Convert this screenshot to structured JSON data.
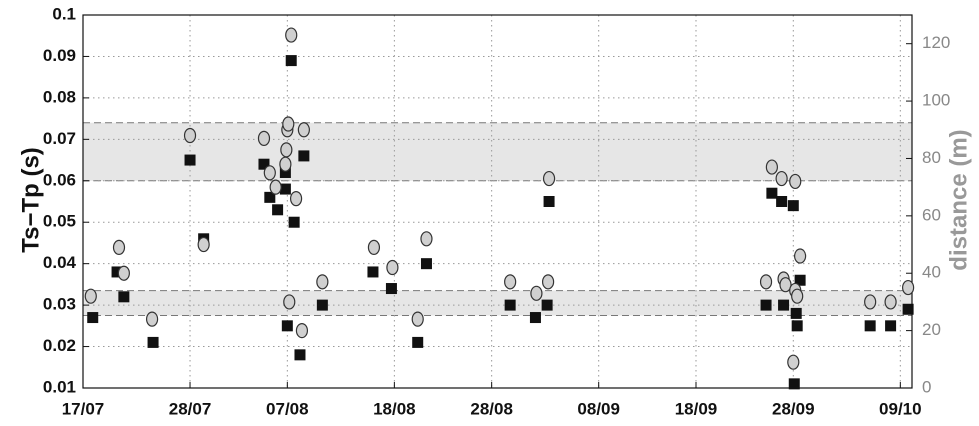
{
  "chart_data": {
    "type": "scatter",
    "y_label": "Ts−Tp (s)",
    "y2_label": "distance (m)",
    "xlim": [
      0,
      85.2
    ],
    "xticks": [
      {
        "value": 0,
        "label": "17/07"
      },
      {
        "value": 11,
        "label": "28/07"
      },
      {
        "value": 21,
        "label": "07/08"
      },
      {
        "value": 32,
        "label": "18/08"
      },
      {
        "value": 42,
        "label": "28/08"
      },
      {
        "value": 53,
        "label": "08/09"
      },
      {
        "value": 63,
        "label": "18/09"
      },
      {
        "value": 73,
        "label": "28/09"
      },
      {
        "value": 84,
        "label": "09/10"
      }
    ],
    "ylim": [
      0.01,
      0.1
    ],
    "yticks": [
      0.01,
      0.02,
      0.03,
      0.04,
      0.05,
      0.06,
      0.07,
      0.08,
      0.09,
      0.1
    ],
    "y2lim": [
      0,
      130
    ],
    "y2ticks": [
      0,
      20,
      40,
      60,
      80,
      100,
      120
    ],
    "grid": true,
    "bands": [
      [
        0.06,
        0.074
      ],
      [
        0.0275,
        0.0335
      ]
    ],
    "band_color": "#e6e6e6",
    "series": [
      {
        "marker": "square",
        "color": "#111111",
        "axis": "y",
        "x": [
          1,
          3.5,
          4.2,
          7.2,
          11,
          12.4,
          18.6,
          19.2,
          20,
          20.8,
          20.8,
          21.4,
          21,
          21.7,
          22.3,
          22.7,
          24.6,
          29.8,
          31.7,
          34.4,
          35.3,
          43.9,
          46.5,
          47.7,
          47.9,
          70.2,
          70.8,
          71.8,
          72,
          73,
          73.1,
          73.3,
          73.4,
          73.7,
          80.9,
          83,
          84.8
        ],
        "values": [
          0.027,
          0.038,
          0.032,
          0.021,
          0.065,
          0.046,
          0.064,
          0.056,
          0.053,
          0.062,
          0.058,
          0.089,
          0.025,
          0.05,
          0.018,
          0.066,
          0.03,
          0.038,
          0.034,
          0.021,
          0.04,
          0.03,
          0.027,
          0.03,
          0.055,
          0.03,
          0.057,
          0.055,
          0.03,
          0.054,
          0.011,
          0.028,
          0.025,
          0.036,
          0.025,
          0.025,
          0.029
        ]
      },
      {
        "marker": "circle",
        "color": "#d0d0d0",
        "axis": "y2",
        "x": [
          0.8,
          3.7,
          4.2,
          7.1,
          11,
          12.4,
          18.6,
          19.2,
          19.8,
          20.8,
          20.9,
          21,
          21.1,
          21.4,
          21.2,
          21.9,
          22.5,
          22.7,
          24.6,
          29.9,
          31.8,
          34.4,
          35.3,
          43.9,
          46.6,
          47.8,
          47.9,
          70.2,
          70.8,
          71.8,
          72,
          72.2,
          73.2,
          73.2,
          73.4,
          73,
          73.7,
          80.9,
          83,
          84.8
        ],
        "values": [
          32,
          49,
          40,
          24,
          88,
          50,
          87,
          75,
          70,
          78,
          83,
          90,
          92,
          123,
          30,
          66,
          20,
          90,
          37,
          49,
          42,
          24,
          52,
          37,
          33,
          37,
          73,
          37,
          77,
          73,
          38,
          36,
          72,
          34,
          32,
          9,
          46,
          30,
          30,
          35
        ]
      }
    ]
  }
}
